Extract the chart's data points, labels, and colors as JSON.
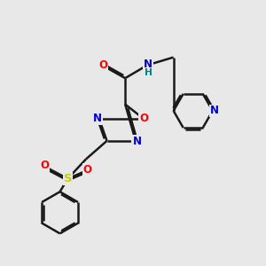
{
  "bg_color": "#e8e8e8",
  "bond_color": "#1a1a1a",
  "bond_width": 1.8,
  "dbo": 0.06,
  "atom_colors": {
    "N": "#0000cc",
    "O": "#ff0000",
    "S": "#cccc00",
    "C": "#1a1a1a",
    "H": "#008080"
  },
  "font_size": 8.5
}
